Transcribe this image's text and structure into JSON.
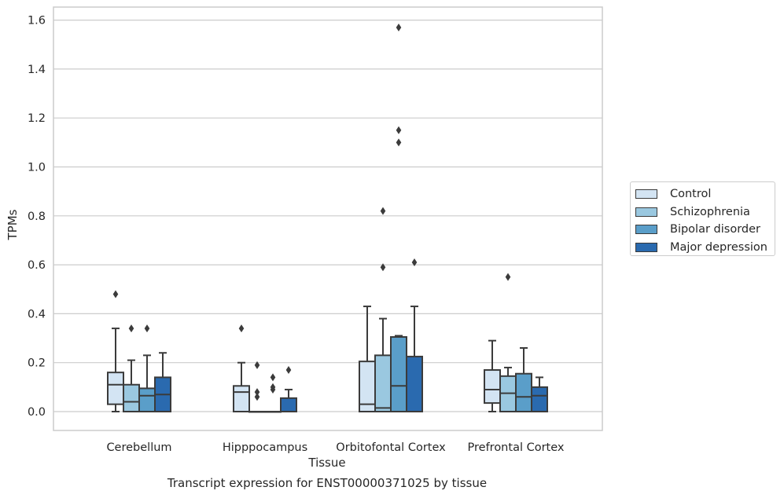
{
  "chart_data": {
    "type": "box",
    "caption": "Transcript expression for ENST00000371025 by tissue",
    "xlabel": "Tissue",
    "ylabel": "TPMs",
    "ylim": [
      -0.08,
      1.65
    ],
    "yticks": [
      "0.0",
      "0.2",
      "0.4",
      "0.6",
      "0.8",
      "1.0",
      "1.2",
      "1.4",
      "1.6"
    ],
    "grid": true,
    "legend_position": "right",
    "categories": [
      "Cerebellum",
      "Hipppocampus",
      "Orbitofontal Cortex",
      "Prefrontal Cortex"
    ],
    "series": [
      {
        "name": "Control",
        "color": "#d3e4f3",
        "boxes": [
          {
            "whislo": 0.0,
            "q1": 0.03,
            "med": 0.11,
            "q3": 0.16,
            "whishi": 0.34,
            "fliers": [
              0.48
            ]
          },
          {
            "whislo": 0.0,
            "q1": 0.0,
            "med": 0.08,
            "q3": 0.105,
            "whishi": 0.2,
            "fliers": [
              0.34
            ]
          },
          {
            "whislo": 0.0,
            "q1": 0.0,
            "med": 0.03,
            "q3": 0.205,
            "whishi": 0.43,
            "fliers": []
          },
          {
            "whislo": 0.0,
            "q1": 0.035,
            "med": 0.09,
            "q3": 0.17,
            "whishi": 0.29,
            "fliers": []
          }
        ]
      },
      {
        "name": "Schizophrenia",
        "color": "#9ac8e0",
        "boxes": [
          {
            "whislo": 0.0,
            "q1": 0.0,
            "med": 0.04,
            "q3": 0.11,
            "whishi": 0.21,
            "fliers": [
              0.34
            ]
          },
          {
            "whislo": 0.0,
            "q1": 0.0,
            "med": 0.0,
            "q3": 0.0,
            "whishi": 0.0,
            "fliers": [
              0.06,
              0.08,
              0.19
            ]
          },
          {
            "whislo": 0.0,
            "q1": 0.0,
            "med": 0.015,
            "q3": 0.23,
            "whishi": 0.38,
            "fliers": [
              0.59,
              0.82
            ]
          },
          {
            "whislo": 0.0,
            "q1": 0.0,
            "med": 0.075,
            "q3": 0.145,
            "whishi": 0.18,
            "fliers": [
              0.55
            ]
          }
        ]
      },
      {
        "name": "Bipolar disorder",
        "color": "#5a9ec9",
        "boxes": [
          {
            "whislo": 0.0,
            "q1": 0.0,
            "med": 0.065,
            "q3": 0.095,
            "whishi": 0.23,
            "fliers": [
              0.34
            ]
          },
          {
            "whislo": 0.0,
            "q1": 0.0,
            "med": 0.0,
            "q3": 0.0,
            "whishi": 0.0,
            "fliers": [
              0.09,
              0.1,
              0.14
            ]
          },
          {
            "whislo": 0.0,
            "q1": 0.0,
            "med": 0.105,
            "q3": 0.305,
            "whishi": 0.31,
            "fliers": [
              1.1,
              1.15,
              1.57
            ]
          },
          {
            "whislo": 0.0,
            "q1": 0.0,
            "med": 0.06,
            "q3": 0.155,
            "whishi": 0.26,
            "fliers": []
          }
        ]
      },
      {
        "name": "Major depression",
        "color": "#2a6aaf",
        "boxes": [
          {
            "whislo": 0.0,
            "q1": 0.0,
            "med": 0.07,
            "q3": 0.14,
            "whishi": 0.24,
            "fliers": []
          },
          {
            "whislo": 0.0,
            "q1": 0.0,
            "med": 0.0,
            "q3": 0.055,
            "whishi": 0.09,
            "fliers": [
              0.17
            ]
          },
          {
            "whislo": 0.0,
            "q1": 0.0,
            "med": 0.0,
            "q3": 0.225,
            "whishi": 0.43,
            "fliers": [
              0.61
            ]
          },
          {
            "whislo": 0.0,
            "q1": 0.0,
            "med": 0.065,
            "q3": 0.1,
            "whishi": 0.14,
            "fliers": []
          }
        ]
      }
    ]
  }
}
